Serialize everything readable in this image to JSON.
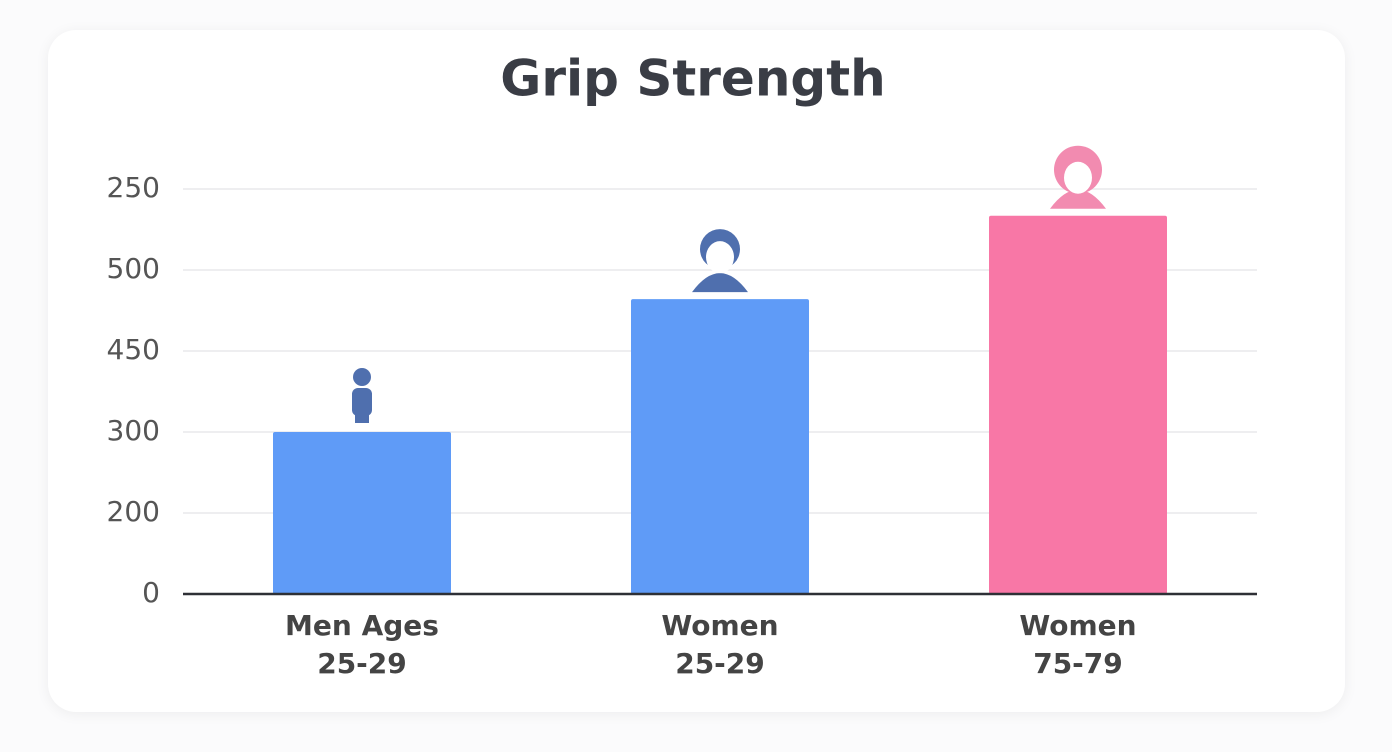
{
  "chart_data": {
    "type": "bar",
    "title": "Grip Strength",
    "categories": [
      "Men Ages 25-29",
      "Women 25-29",
      "Women 75-79"
    ],
    "values": [
      2.0,
      3.64,
      4.67
    ],
    "colors": [
      "#5f9bf7",
      "#5f9bf7",
      "#f877a6"
    ],
    "ylim": [
      0,
      5
    ],
    "yticks": [
      {
        "value": 0,
        "label": "0"
      },
      {
        "value": 1,
        "label": "200"
      },
      {
        "value": 2,
        "label": "300"
      },
      {
        "value": 3,
        "label": "450"
      },
      {
        "value": 4,
        "label": "500"
      },
      {
        "value": 5,
        "label": "250"
      }
    ],
    "grid": true
  }
}
